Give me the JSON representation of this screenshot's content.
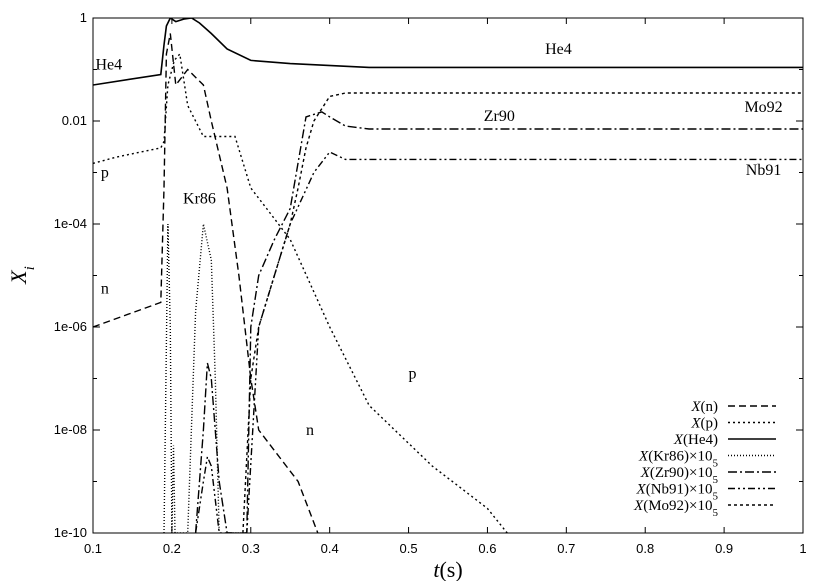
{
  "chart_data": {
    "type": "line",
    "xlabel": "t(s)",
    "ylabel": "X_i",
    "x_scale": "linear",
    "y_scale": "log",
    "xlim": [
      0.1,
      1.0
    ],
    "ylim": [
      1e-10,
      1
    ],
    "grid": false,
    "legend_position": "bottom-right",
    "x_ticks": [
      "0.1",
      "0.2",
      "0.3",
      "0.4",
      "0.5",
      "0.6",
      "0.7",
      "0.8",
      "0.9",
      "1"
    ],
    "y_ticks": [
      "1e-10",
      "1e-08",
      "1e-06",
      "1e-04",
      "0.01",
      "1"
    ],
    "annotations": [
      {
        "text": "He4",
        "x": 0.12,
        "y": 0.1
      },
      {
        "text": "He4",
        "x": 0.69,
        "y": 0.2
      },
      {
        "text": "Mo92",
        "x": 0.95,
        "y": 0.015
      },
      {
        "text": "Zr90",
        "x": 0.615,
        "y": 0.01
      },
      {
        "text": "Nb91",
        "x": 0.95,
        "y": 0.0009
      },
      {
        "text": "p",
        "x": 0.115,
        "y": 0.0008
      },
      {
        "text": "Kr86",
        "x": 0.235,
        "y": 0.00025
      },
      {
        "text": "n",
        "x": 0.115,
        "y": 4.5e-06
      },
      {
        "text": "n",
        "x": 0.375,
        "y": 8e-09
      },
      {
        "text": "p",
        "x": 0.505,
        "y": 1e-07
      }
    ],
    "series": [
      {
        "name": "X(n)",
        "dash": "7,4",
        "x": [
          0.1,
          0.186,
          0.19,
          0.193,
          0.198,
          0.205,
          0.22,
          0.24,
          0.25,
          0.27,
          0.285,
          0.3,
          0.31,
          0.36,
          0.385
        ],
        "y": [
          1e-06,
          3e-06,
          0.0005,
          0.2,
          0.5,
          0.05,
          0.1,
          0.05,
          0.01,
          0.0005,
          1e-05,
          1e-07,
          1e-08,
          1e-09,
          1e-10
        ]
      },
      {
        "name": "X(p)",
        "dash": "2,3",
        "x": [
          0.1,
          0.13,
          0.186,
          0.19,
          0.195,
          0.203,
          0.21,
          0.22,
          0.24,
          0.28,
          0.3,
          0.32,
          0.35,
          0.4,
          0.45,
          0.53,
          0.6,
          0.625
        ],
        "y": [
          0.0015,
          0.002,
          0.003,
          0.004,
          0.05,
          0.15,
          0.2,
          0.02,
          0.005,
          0.005,
          0.0005,
          0.0002,
          5e-05,
          1e-06,
          3e-08,
          2e-09,
          3e-10,
          1e-10
        ]
      },
      {
        "name": "X(He4)",
        "dash": "",
        "x": [
          0.1,
          0.186,
          0.19,
          0.193,
          0.198,
          0.205,
          0.215,
          0.225,
          0.235,
          0.25,
          0.27,
          0.3,
          0.35,
          0.45,
          0.6,
          1.0
        ],
        "y": [
          0.05,
          0.08,
          0.3,
          0.7,
          1.0,
          0.85,
          0.95,
          1.0,
          0.8,
          0.5,
          0.25,
          0.15,
          0.13,
          0.11,
          0.11,
          0.11
        ]
      },
      {
        "name": "X(Kr86)×10^5",
        "dash": "1,2",
        "x": [
          0.19,
          0.195,
          0.198,
          0.2,
          0.202,
          0.204,
          0.22,
          0.23,
          0.24,
          0.25,
          0.255,
          0.26
        ],
        "y": [
          1e-10,
          0.0001,
          1e-06,
          1e-10,
          5e-09,
          1e-10,
          1e-10,
          2e-06,
          0.0001,
          2e-05,
          1e-07,
          1e-10
        ]
      },
      {
        "name": "X(Zr90)×10^5",
        "dash": "9,3,2,3",
        "x": [
          0.23,
          0.24,
          0.245,
          0.25,
          0.26,
          0.27,
          0.28,
          0.295,
          0.3,
          0.31,
          0.33,
          0.35,
          0.37,
          0.39,
          0.4,
          0.42,
          0.45,
          1.0
        ],
        "y": [
          1e-10,
          1e-08,
          2e-07,
          1e-07,
          1e-09,
          1e-10,
          1e-10,
          1e-10,
          1e-06,
          1e-05,
          5e-05,
          0.0002,
          0.012,
          0.015,
          0.012,
          0.008,
          0.007,
          0.007
        ]
      },
      {
        "name": "X(Nb91)×10^5",
        "dash": "7,3,2,3,2,3",
        "x": [
          0.23,
          0.24,
          0.245,
          0.25,
          0.26,
          0.285,
          0.295,
          0.31,
          0.33,
          0.35,
          0.38,
          0.4,
          0.42,
          0.45,
          1.0
        ],
        "y": [
          1e-10,
          1e-09,
          3e-09,
          2e-09,
          1e-10,
          1e-10,
          1e-10,
          1e-06,
          1e-05,
          0.0001,
          0.001,
          0.0025,
          0.0018,
          0.0018,
          0.0018
        ]
      },
      {
        "name": "X(Mo92)×10^5",
        "dash": "3,3",
        "x": [
          0.29,
          0.3,
          0.31,
          0.33,
          0.35,
          0.36,
          0.37,
          0.38,
          0.4,
          0.42,
          0.45,
          1.0
        ],
        "y": [
          1e-10,
          1e-07,
          1e-06,
          1e-05,
          0.0001,
          0.0005,
          0.003,
          0.01,
          0.03,
          0.035,
          0.035,
          0.035
        ]
      }
    ]
  }
}
